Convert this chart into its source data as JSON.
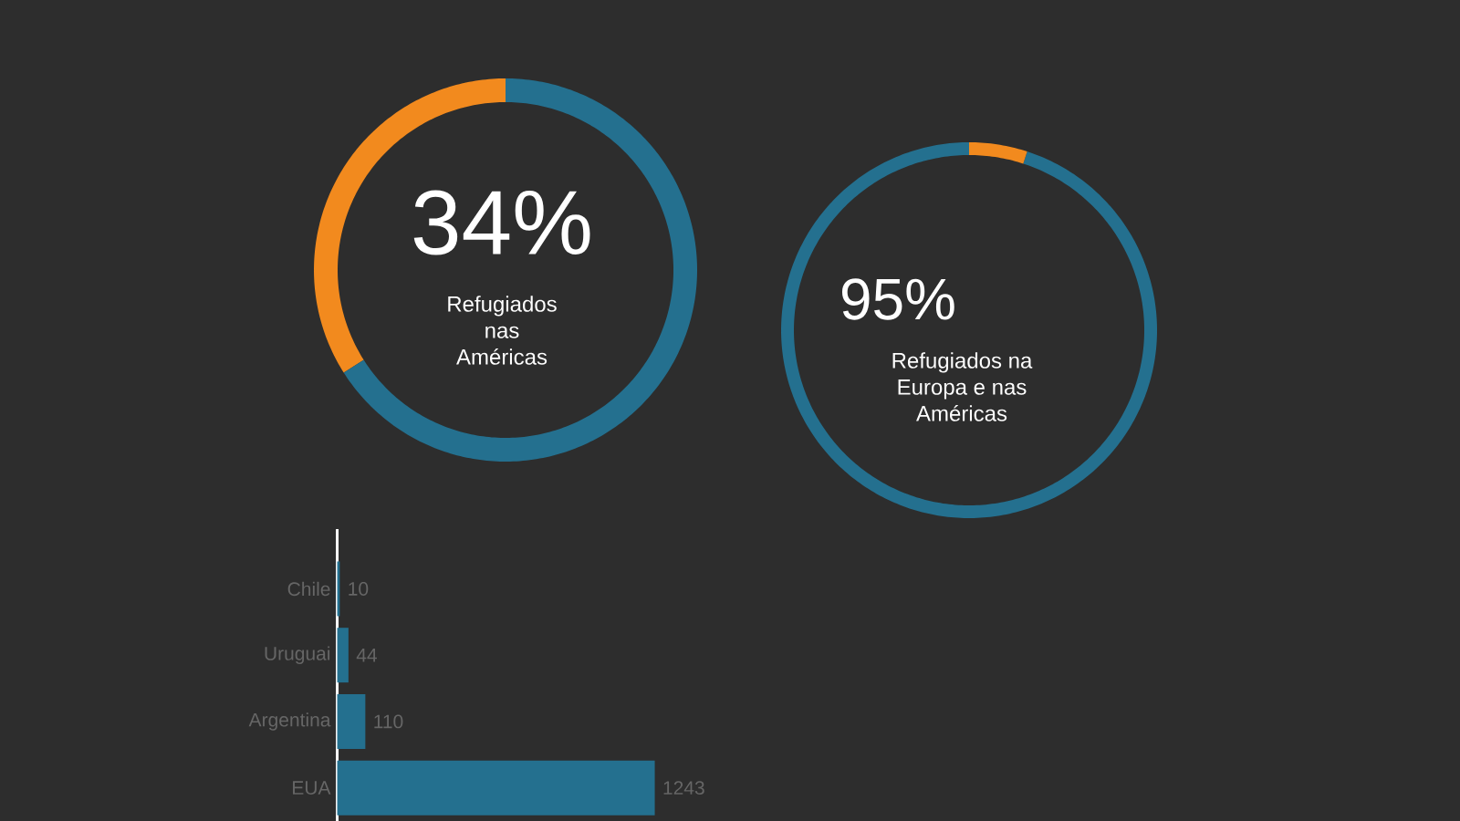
{
  "chart_data": [
    {
      "type": "donut",
      "title": "Refugiados nas Américas",
      "categories": [
        null,
        null
      ],
      "values": [
        34,
        66
      ],
      "colors": [
        "#f28a1e",
        "#24708f"
      ],
      "value_labels": [
        "34%",
        null
      ]
    },
    {
      "type": "donut",
      "title": "Refugiados na Europa e nas Américas",
      "categories": [
        null,
        null
      ],
      "values": [
        95,
        5
      ],
      "colors": [
        "#24708f",
        "#f28a1e"
      ],
      "value_labels": [
        "95%",
        null
      ]
    },
    {
      "type": "bar",
      "orientation": "horizontal",
      "categories": [
        "Chile",
        "Uruguai",
        "Argentina",
        "EUA"
      ],
      "values": [
        10,
        44,
        110,
        1243
      ],
      "color": "#24708f",
      "data_labels": true
    }
  ]
}
